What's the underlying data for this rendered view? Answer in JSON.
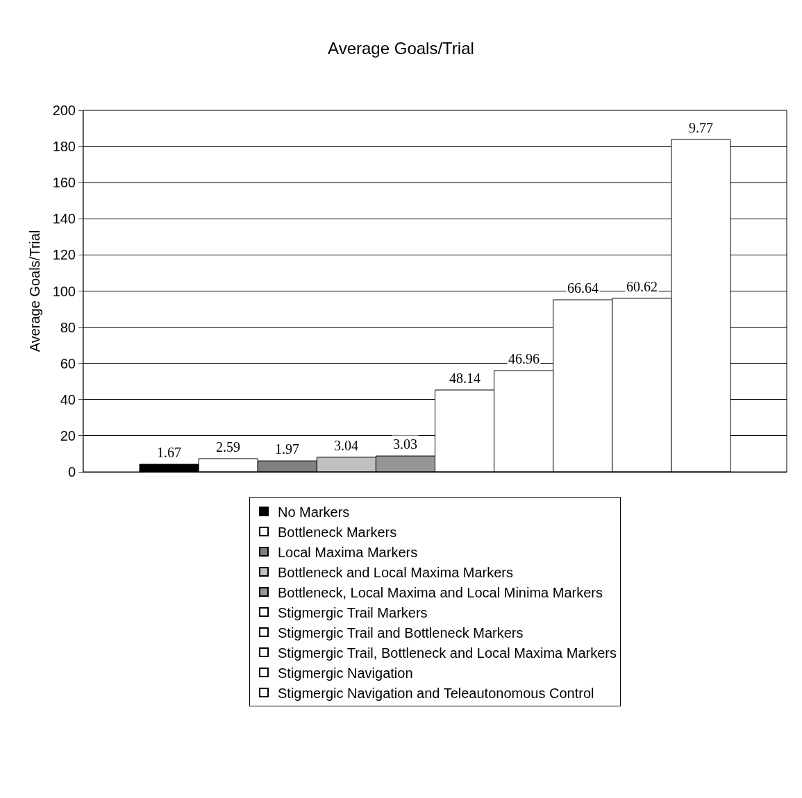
{
  "chart_data": {
    "type": "bar",
    "title": "Average Goals/Trial",
    "ylabel": "Average Goals/Trial",
    "categories": [
      null
    ],
    "series": [
      {
        "name": "No Markers",
        "color": "#000000",
        "values": [
          4.2
        ]
      },
      {
        "name": "Bottleneck Markers",
        "color": "#ffffff",
        "values": [
          7.3
        ]
      },
      {
        "name": "Local Maxima Markers",
        "color": "#808080",
        "values": [
          6.1
        ]
      },
      {
        "name": "Bottleneck and Local Maxima Markers",
        "color": "#c0c0c0",
        "values": [
          8.1
        ]
      },
      {
        "name": "Bottleneck, Local Maxima and Local Minima Markers",
        "color": "#969696",
        "values": [
          8.8
        ]
      },
      {
        "name": "Stigmergic Trail Markers",
        "color": "#ffffff",
        "values": [
          45.3
        ]
      },
      {
        "name": "Stigmergic Trail and Bottleneck Markers",
        "color": "#ffffff",
        "values": [
          56.0
        ]
      },
      {
        "name": "Stigmergic Trail, Bottleneck and Local Maxima Markers",
        "color": "#ffffff",
        "values": [
          95.2
        ]
      },
      {
        "name": "Stigmergic Navigation",
        "color": "#ffffff",
        "values": [
          96.0
        ]
      },
      {
        "name": "Stigmergic Navigation and Teleautonomous Control",
        "color": "#ffffff",
        "values": [
          183.9
        ]
      }
    ],
    "annotations": [
      "1.67",
      "2.59",
      "1.97",
      "3.04",
      "3.03",
      "48.14",
      "46.96",
      "66.64",
      "60.62",
      "9.77"
    ],
    "ylim": [
      0,
      200
    ],
    "yticks": [
      0,
      20,
      40,
      60,
      80,
      100,
      120,
      140,
      160,
      180,
      200
    ],
    "grid": "y",
    "legend": "bottom"
  }
}
